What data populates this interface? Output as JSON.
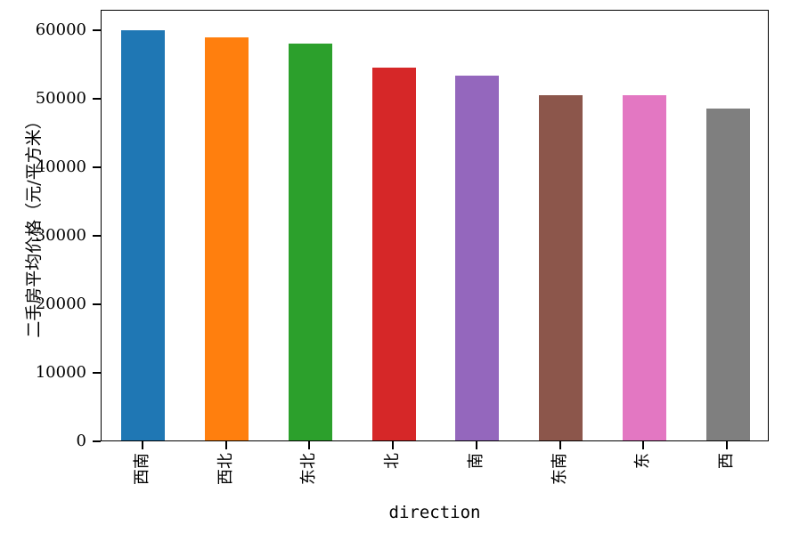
{
  "chart_data": {
    "type": "bar",
    "title": "",
    "xlabel": "direction",
    "ylabel": "二手房平均价格（元/平方米）",
    "categories": [
      "西南",
      "西北",
      "东北",
      "北",
      "南",
      "东南",
      "东",
      "西"
    ],
    "values": [
      59900,
      58900,
      57900,
      54400,
      53300,
      50400,
      50400,
      48400
    ],
    "bar_colors": [
      "#1f77b4",
      "#ff7f0e",
      "#2ca02c",
      "#d62728",
      "#9467bd",
      "#8c564b",
      "#e377c2",
      "#7f7f7f"
    ],
    "ylim": [
      0,
      63000
    ],
    "yticks": [
      0,
      10000,
      20000,
      30000,
      40000,
      50000,
      60000
    ],
    "ytick_labels": [
      "0",
      "10000",
      "20000",
      "30000",
      "40000",
      "50000",
      "60000"
    ],
    "xtick_rotation_deg": 90,
    "grid": false,
    "legend": null,
    "axis_color": "#000000",
    "background_color": "#ffffff"
  }
}
